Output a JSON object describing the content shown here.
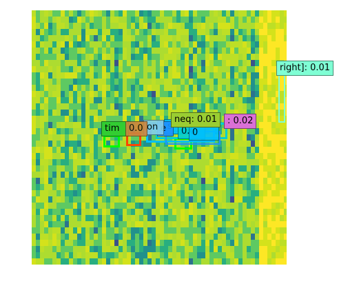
{
  "colors": {
    "spectrogram_low": "#440154",
    "spectrogram_mid": "#21918c",
    "spectrogram_high": "#bddf26",
    "spectrogram_peak": "#fde725"
  },
  "detections": [
    {
      "label": "right]: 0.01",
      "color": "#7fffd4"
    },
    {
      "label": "neq: 0.01",
      "color": "#9acd32"
    },
    {
      "label": ": 0.02",
      "color": "#da70d6"
    },
    {
      "label": "tim",
      "color": "#32cd32"
    },
    {
      "label": "0.0",
      "color": "#cd853f"
    },
    {
      "label": "on",
      "color": "#87ceeb"
    },
    {
      "label": "e",
      "color": "#1e90ff"
    },
    {
      "label": "s",
      "color": "#00bfff"
    },
    {
      "label": "0.0",
      "color": "#00ced1"
    },
    {
      "label": "0",
      "color": "#00bfff"
    }
  ]
}
